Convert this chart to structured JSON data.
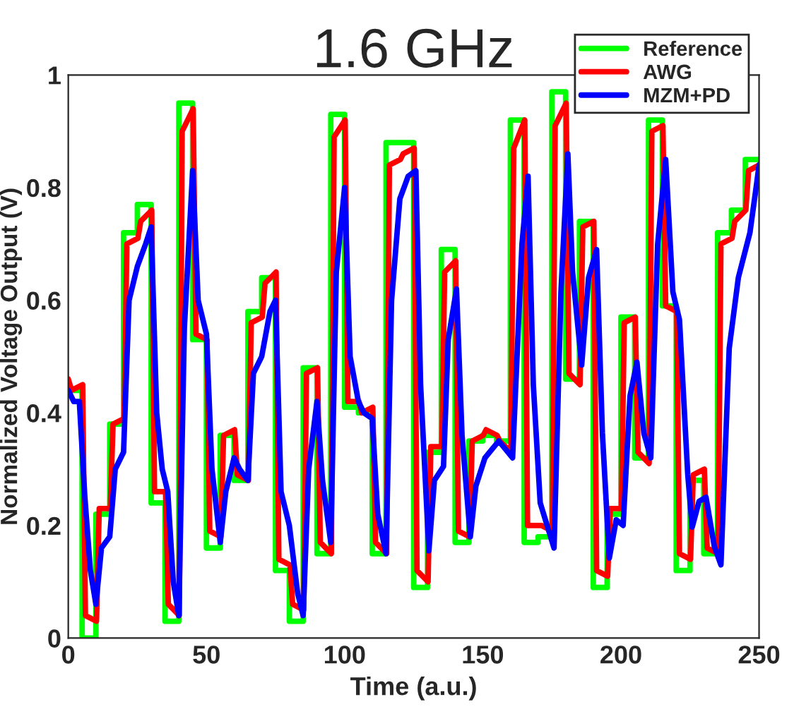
{
  "chart_data": {
    "type": "line",
    "title": "1.6 GHz",
    "xlabel": "Time (a.u.)",
    "ylabel": "Normalized Voltage Output (V)",
    "xlim": [
      0,
      250
    ],
    "ylim": [
      0,
      1
    ],
    "xticks": [
      0,
      50,
      100,
      150,
      200,
      250
    ],
    "yticks": [
      0,
      0.2,
      0.4,
      0.6,
      0.8,
      1
    ],
    "grid": false,
    "legend": "top right",
    "marker": "none",
    "line_style": "solid",
    "series": [
      {
        "name": "Reference",
        "type": "step",
        "color": "#00ff00",
        "x": [
          0,
          5,
          10,
          15,
          20,
          25,
          30,
          35,
          40,
          45,
          50,
          55,
          60,
          65,
          70,
          75,
          80,
          85,
          90,
          95,
          100,
          105,
          110,
          115,
          120,
          125,
          130,
          135,
          140,
          145,
          150,
          155,
          160,
          165,
          170,
          175,
          180,
          185,
          190,
          195,
          200,
          205,
          210,
          215,
          220,
          225,
          230,
          235,
          240,
          245,
          250
        ],
        "values": [
          0.44,
          0,
          0.22,
          0.38,
          0.72,
          0.77,
          0.24,
          0.03,
          0.95,
          0.53,
          0.16,
          0.36,
          0.28,
          0.58,
          0.64,
          0.12,
          0.03,
          0.48,
          0.15,
          0.93,
          0.41,
          0.4,
          0.15,
          0.88,
          0.88,
          0.09,
          0.33,
          0.69,
          0.17,
          0.35,
          0.36,
          0.35,
          0.92,
          0.17,
          0.18,
          0.97,
          0.46,
          0.74,
          0.09,
          0.22,
          0.57,
          0.32,
          0.92,
          0.59,
          0.12,
          0.28,
          0.15,
          0.72,
          0.76,
          0.85,
          0.85
        ]
      },
      {
        "name": "AWG",
        "color": "#ff0000",
        "x": [
          0,
          1.2,
          5.2,
          6.2,
          10.2,
          11.2,
          15.2,
          16.2,
          20.2,
          21.2,
          25.2,
          26.2,
          30.2,
          31.2,
          35.2,
          36.2,
          40.2,
          41.2,
          45.2,
          46.2,
          50.2,
          51.2,
          55.2,
          56.2,
          60.2,
          61.2,
          65.2,
          66.2,
          70.2,
          71.2,
          75.2,
          76.2,
          80.2,
          81.2,
          85.2,
          86.2,
          90.2,
          91.2,
          95.2,
          96.2,
          100.2,
          101.2,
          105.2,
          106.2,
          110.2,
          111.2,
          115.2,
          116.2,
          120.2,
          121.2,
          125.2,
          126.2,
          130.2,
          131.2,
          135.2,
          136.2,
          140.2,
          141.2,
          145.2,
          146.2,
          150.2,
          151.2,
          155.2,
          156.2,
          160.2,
          161.2,
          165.2,
          166.2,
          170.2,
          171.2,
          175.2,
          176.2,
          180.2,
          181.2,
          185.2,
          186.2,
          190.2,
          191.2,
          195.2,
          196.2,
          200.2,
          201.2,
          205.2,
          206.2,
          210.2,
          211.2,
          215.2,
          216.2,
          220.2,
          221.2,
          225.2,
          226.2,
          230.2,
          231.2,
          235.2,
          236.2,
          240.2,
          241.2,
          245.2,
          246.2,
          250
        ],
        "values": [
          0.46,
          0.44,
          0.45,
          0.04,
          0.03,
          0.23,
          0.23,
          0.38,
          0.39,
          0.7,
          0.71,
          0.74,
          0.76,
          0.26,
          0.26,
          0.06,
          0.04,
          0.9,
          0.94,
          0.54,
          0.53,
          0.19,
          0.18,
          0.36,
          0.37,
          0.29,
          0.28,
          0.56,
          0.57,
          0.63,
          0.65,
          0.14,
          0.13,
          0.06,
          0.05,
          0.47,
          0.48,
          0.17,
          0.15,
          0.89,
          0.92,
          0.42,
          0.42,
          0.4,
          0.41,
          0.17,
          0.15,
          0.84,
          0.85,
          0.86,
          0.87,
          0.12,
          0.1,
          0.34,
          0.34,
          0.65,
          0.67,
          0.19,
          0.18,
          0.35,
          0.36,
          0.37,
          0.36,
          0.35,
          0.33,
          0.87,
          0.92,
          0.2,
          0.2,
          0.2,
          0.19,
          0.91,
          0.95,
          0.47,
          0.45,
          0.73,
          0.74,
          0.12,
          0.11,
          0.23,
          0.23,
          0.56,
          0.57,
          0.33,
          0.31,
          0.9,
          0.91,
          0.59,
          0.58,
          0.15,
          0.14,
          0.29,
          0.3,
          0.16,
          0.15,
          0.7,
          0.71,
          0.74,
          0.76,
          0.83,
          0.84
        ]
      },
      {
        "name": "MZM+PD",
        "color": "#0000ff",
        "x": [
          0,
          2,
          4,
          6,
          8,
          10,
          12,
          15,
          17,
          20,
          22,
          25,
          28,
          30,
          32,
          34,
          36,
          38,
          40,
          42,
          45,
          47,
          50,
          52,
          55,
          57,
          60,
          62,
          65,
          67,
          70,
          73,
          75,
          77,
          80,
          83,
          85,
          87,
          90,
          92,
          95,
          97,
          100,
          102,
          105,
          107,
          110,
          112,
          115,
          117,
          120,
          123,
          125.8,
          127.5,
          130.5,
          132.5,
          135.8,
          137.5,
          140.5,
          142.5,
          145.5,
          147.5,
          150.8,
          155.8,
          160.8,
          164.2,
          166.4,
          168.3,
          170.8,
          175.8,
          178.3,
          180.8,
          182.5,
          185.8,
          188.3,
          191.2,
          193.3,
          195.8,
          198.3,
          200.8,
          203.3,
          205.8,
          208.3,
          210.8,
          213.3,
          216.2,
          218.8,
          221.2,
          224.2,
          225.8,
          228.3,
          230.8,
          233.8,
          236.2,
          239.2,
          242.5,
          246.7,
          249.2,
          250
        ],
        "values": [
          0.44,
          0.42,
          0.42,
          0.25,
          0.12,
          0.06,
          0.16,
          0.18,
          0.3,
          0.33,
          0.6,
          0.66,
          0.7,
          0.73,
          0.4,
          0.3,
          0.26,
          0.1,
          0.04,
          0.55,
          0.83,
          0.6,
          0.54,
          0.3,
          0.17,
          0.26,
          0.32,
          0.3,
          0.28,
          0.47,
          0.5,
          0.58,
          0.6,
          0.26,
          0.2,
          0.08,
          0.04,
          0.3,
          0.42,
          0.28,
          0.17,
          0.65,
          0.8,
          0.5,
          0.42,
          0.4,
          0.39,
          0.22,
          0.15,
          0.6,
          0.78,
          0.82,
          0.83,
          0.45,
          0.155,
          0.28,
          0.305,
          0.53,
          0.62,
          0.36,
          0.18,
          0.27,
          0.32,
          0.35,
          0.32,
          0.7,
          0.82,
          0.45,
          0.24,
          0.16,
          0.615,
          0.86,
          0.65,
          0.485,
          0.64,
          0.69,
          0.364,
          0.142,
          0.21,
          0.2,
          0.43,
          0.49,
          0.364,
          0.32,
          0.7,
          0.85,
          0.615,
          0.565,
          0.29,
          0.197,
          0.243,
          0.25,
          0.163,
          0.13,
          0.515,
          0.64,
          0.72,
          0.81,
          0.84
        ]
      }
    ]
  }
}
